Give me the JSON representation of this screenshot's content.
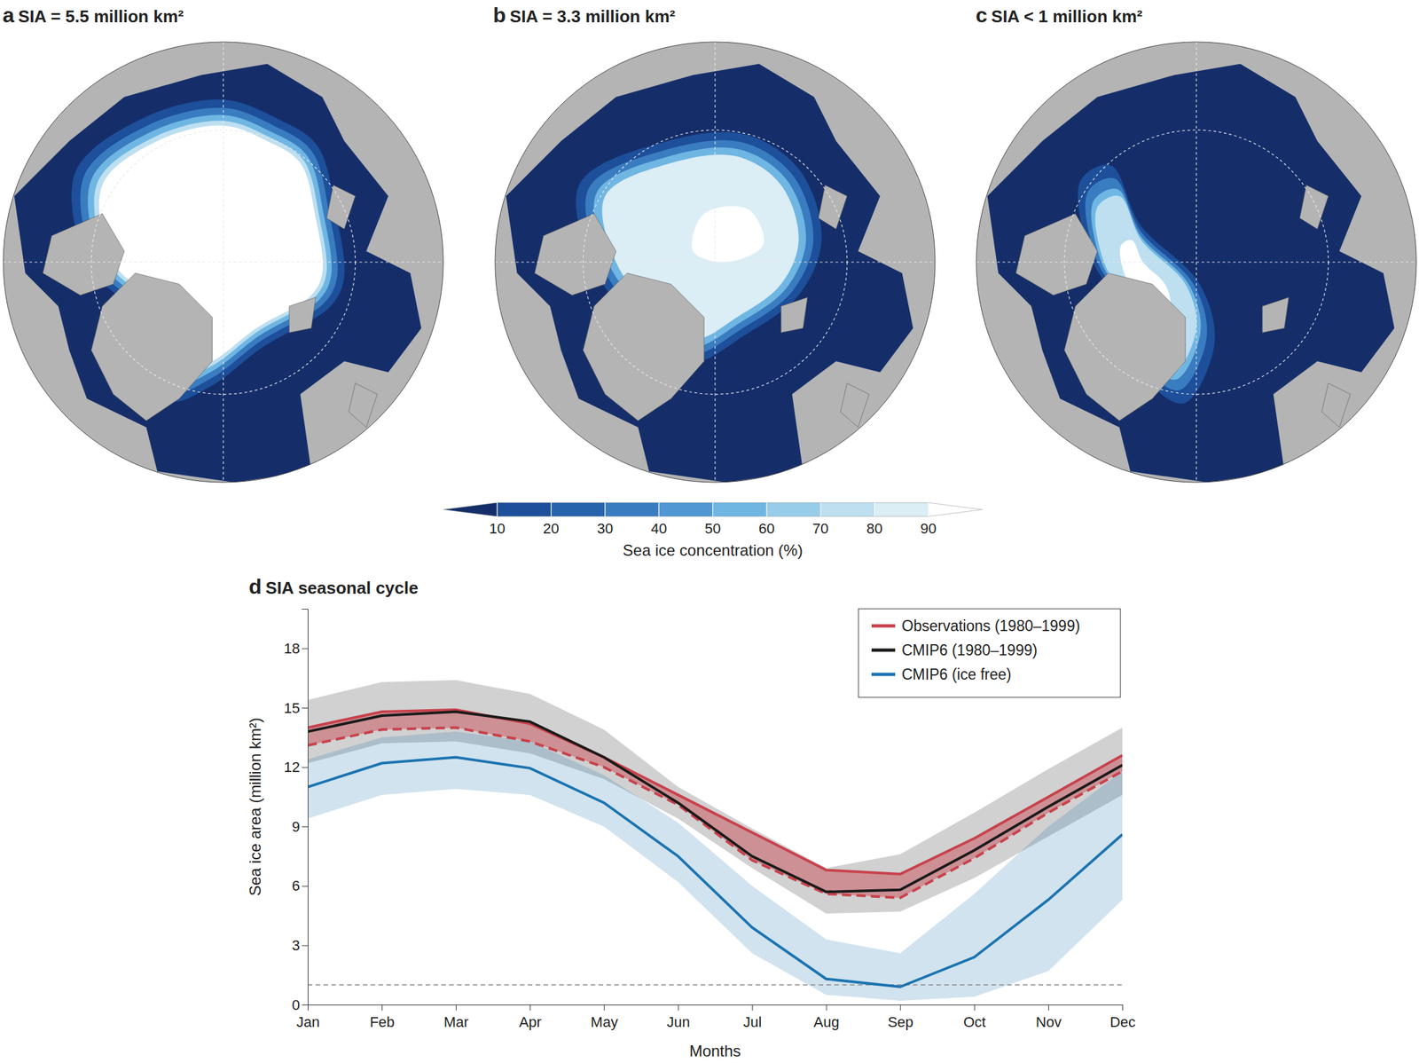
{
  "chart_data": [
    {
      "type": "map",
      "panel": "a",
      "title": "SIA = 5.5 million km²"
    },
    {
      "type": "map",
      "panel": "b",
      "title": "SIA = 3.3 million km²"
    },
    {
      "type": "map",
      "panel": "c",
      "title": "SIA < 1 million km²"
    },
    {
      "type": "colorbar",
      "label": "Sea ice concentration (%)",
      "range": [
        0,
        100
      ],
      "ticks": [
        10,
        20,
        30,
        40,
        50,
        60,
        70,
        80,
        90
      ],
      "colors": [
        "#152e6a",
        "#1d4f9a",
        "#2763ad",
        "#3a7cc0",
        "#4f98d3",
        "#6fb6e3",
        "#98cdea",
        "#bddff0",
        "#dbedf5",
        "#ffffff"
      ]
    },
    {
      "type": "line",
      "panel": "d",
      "title": "SIA seasonal cycle",
      "categories": [
        "Jan",
        "Feb",
        "Mar",
        "Apr",
        "May",
        "Jun",
        "Jul",
        "Aug",
        "Sep",
        "Oct",
        "Nov",
        "Dec"
      ],
      "x_label": "Months",
      "y_label": "Sea ice area (million km²)",
      "ylim": [
        0,
        20
      ],
      "yticks": [
        0,
        3,
        6,
        9,
        12,
        15,
        18
      ],
      "legend": "upper right",
      "threshold": 1,
      "series": [
        {
          "name": "Observations (1980–1999)",
          "color": "#c8414b",
          "line_style": "solid",
          "values": [
            14.0,
            14.8,
            14.9,
            14.2,
            12.5,
            10.6,
            8.7,
            6.8,
            6.6,
            8.4,
            10.5,
            12.6
          ],
          "lower": [
            13.1,
            13.9,
            14.0,
            13.3,
            12.0,
            10.1,
            7.3,
            5.6,
            5.4,
            7.4,
            9.7,
            11.8
          ]
        },
        {
          "color": "#c8414b",
          "line_style": "dashed",
          "values": [
            13.1,
            13.9,
            14.0,
            13.3,
            12.0,
            10.1,
            7.3,
            5.6,
            5.4,
            7.4,
            9.7,
            11.8
          ]
        },
        {
          "name": "CMIP6 (1980–1999)",
          "color": "#1a1a1a",
          "line_style": "solid",
          "values": [
            13.8,
            14.6,
            14.8,
            14.3,
            12.5,
            10.2,
            7.5,
            5.7,
            5.8,
            7.8,
            10.0,
            12.1
          ],
          "lower": [
            12.2,
            13.2,
            13.3,
            12.7,
            11.4,
            9.4,
            6.9,
            4.6,
            4.7,
            6.4,
            8.5,
            10.6
          ],
          "upper": [
            15.4,
            16.3,
            16.4,
            15.7,
            13.9,
            11.0,
            8.9,
            6.9,
            7.6,
            9.7,
            11.9,
            14.0
          ]
        },
        {
          "name": "CMIP6 (ice free)",
          "color": "#1a73b0",
          "line_style": "solid",
          "values": [
            11.0,
            12.2,
            12.5,
            11.95,
            10.2,
            7.5,
            3.9,
            1.3,
            0.9,
            2.4,
            5.3,
            8.6
          ],
          "lower": [
            9.4,
            10.6,
            10.9,
            10.6,
            9.0,
            6.2,
            2.6,
            0.5,
            0.2,
            0.4,
            1.7,
            5.3
          ],
          "upper": [
            12.4,
            13.5,
            13.8,
            13.3,
            11.6,
            9.2,
            6.0,
            3.3,
            2.6,
            5.6,
            9.0,
            11.8
          ]
        }
      ]
    }
  ]
}
